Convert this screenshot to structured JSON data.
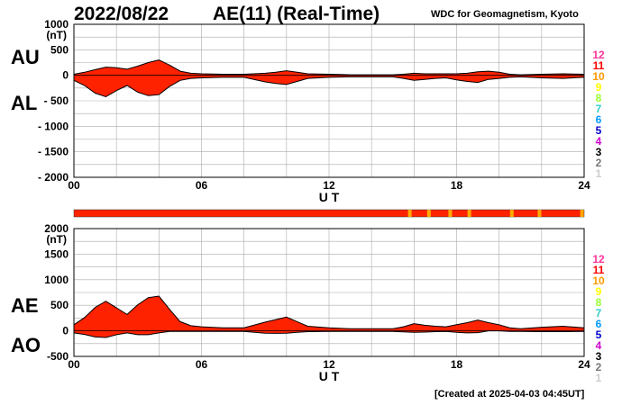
{
  "header": {
    "date": "2022/08/22",
    "title": "AE(11) (Real-Time)",
    "source": "WDC for Geomagnetism, Kyoto"
  },
  "footer": "[Created at 2025-04-03 04:45UT]",
  "labels": {
    "au": "AU",
    "al": "AL",
    "ae": "AE",
    "ao": "AO"
  },
  "legend": [
    {
      "label": "12",
      "color": "#ff3399"
    },
    {
      "label": "11",
      "color": "#ff0000"
    },
    {
      "label": "10",
      "color": "#ff9900"
    },
    {
      "label": "9",
      "color": "#ffff00"
    },
    {
      "label": "8",
      "color": "#99ff33"
    },
    {
      "label": "7",
      "color": "#33cccc"
    },
    {
      "label": "6",
      "color": "#0099ff"
    },
    {
      "label": "5",
      "color": "#0000cc"
    },
    {
      "label": "4",
      "color": "#cc00cc"
    },
    {
      "label": "3",
      "color": "#000000"
    },
    {
      "label": "2",
      "color": "#777777"
    },
    {
      "label": "1",
      "color": "#cccccc"
    }
  ],
  "colors": {
    "fill": "#ff2200",
    "outline": "#000000",
    "grid": "#aaaaaa",
    "marker": "#ffaa00"
  },
  "station_strip": {
    "color": "#ff2200",
    "marker_hours": [
      15.8,
      16.7,
      17.7,
      18.6,
      20.6,
      21.9,
      23.9
    ]
  },
  "chart_data": [
    {
      "type": "area",
      "title": "AU / AL",
      "xlabel": "U T",
      "ylabel": "(nT)",
      "xlim": [
        0,
        24
      ],
      "ylim": [
        -2000,
        1000
      ],
      "xticks": [
        "00",
        "06",
        "12",
        "18",
        "24"
      ],
      "yticks": [
        "1000",
        "500",
        "0",
        "- 500",
        "- 1000",
        "- 1500",
        "- 2000"
      ],
      "grid": true,
      "series": [
        {
          "name": "AU",
          "x": [
            0,
            0.5,
            1,
            1.5,
            2,
            2.5,
            3,
            3.5,
            4,
            4.5,
            5,
            5.5,
            6,
            7,
            8,
            9,
            9.5,
            10,
            10.5,
            11,
            12,
            13,
            14,
            15,
            15.5,
            16,
            16.5,
            17,
            17.5,
            18,
            18.5,
            19,
            19.5,
            20,
            20.5,
            21,
            22,
            23,
            24
          ],
          "values": [
            20,
            60,
            110,
            160,
            150,
            120,
            180,
            250,
            300,
            200,
            80,
            40,
            30,
            20,
            20,
            40,
            60,
            90,
            60,
            30,
            20,
            10,
            10,
            10,
            20,
            40,
            30,
            30,
            30,
            30,
            40,
            70,
            80,
            60,
            20,
            10,
            20,
            30,
            20
          ]
        },
        {
          "name": "AL",
          "x": [
            0,
            0.5,
            1,
            1.5,
            2,
            2.5,
            3,
            3.5,
            4,
            4.5,
            5,
            5.5,
            6,
            7,
            8,
            9,
            9.5,
            10,
            10.5,
            11,
            12,
            13,
            14,
            15,
            15.5,
            16,
            16.5,
            17,
            17.5,
            18,
            18.5,
            19,
            19.5,
            20,
            20.5,
            21,
            22,
            23,
            24
          ],
          "values": [
            -100,
            -200,
            -350,
            -420,
            -300,
            -200,
            -330,
            -400,
            -380,
            -220,
            -100,
            -60,
            -50,
            -40,
            -40,
            -130,
            -160,
            -180,
            -120,
            -60,
            -40,
            -30,
            -30,
            -30,
            -60,
            -100,
            -80,
            -60,
            -50,
            -90,
            -120,
            -140,
            -80,
            -60,
            -40,
            -30,
            -50,
            -60,
            -40
          ]
        }
      ]
    },
    {
      "type": "area",
      "title": "AE / AO",
      "xlabel": "U T",
      "ylabel": "(nT)",
      "xlim": [
        0,
        24
      ],
      "ylim": [
        -500,
        2000
      ],
      "xticks": [
        "00",
        "06",
        "12",
        "18",
        "24"
      ],
      "yticks": [
        "2000",
        "1500",
        "1000",
        "500",
        "0",
        "-500"
      ],
      "grid": true,
      "series": [
        {
          "name": "AE",
          "x": [
            0,
            0.5,
            1,
            1.5,
            2,
            2.5,
            3,
            3.5,
            4,
            4.5,
            5,
            5.5,
            6,
            7,
            8,
            9,
            9.5,
            10,
            10.5,
            11,
            12,
            13,
            14,
            15,
            15.5,
            16,
            16.5,
            17,
            17.5,
            18,
            18.5,
            19,
            19.5,
            20,
            20.5,
            21,
            22,
            23,
            24
          ],
          "values": [
            120,
            260,
            460,
            580,
            450,
            320,
            510,
            650,
            680,
            420,
            180,
            100,
            80,
            60,
            60,
            170,
            220,
            270,
            180,
            90,
            60,
            40,
            40,
            40,
            80,
            140,
            110,
            90,
            80,
            120,
            160,
            210,
            160,
            120,
            60,
            40,
            70,
            90,
            60
          ]
        },
        {
          "name": "AO",
          "x": [
            0,
            0.5,
            1,
            1.5,
            2,
            2.5,
            3,
            3.5,
            4,
            4.5,
            5,
            5.5,
            6,
            7,
            8,
            9,
            9.5,
            10,
            10.5,
            11,
            12,
            13,
            14,
            15,
            15.5,
            16,
            16.5,
            17,
            17.5,
            18,
            18.5,
            19,
            19.5,
            20,
            20.5,
            21,
            22,
            23,
            24
          ],
          "values": [
            -40,
            -70,
            -120,
            -130,
            -75,
            -40,
            -75,
            -75,
            -40,
            -10,
            -10,
            -10,
            -10,
            -10,
            -10,
            -45,
            -50,
            -45,
            -30,
            -15,
            -10,
            -10,
            -10,
            -10,
            -20,
            -30,
            -25,
            -15,
            -10,
            -30,
            -40,
            -35,
            0,
            0,
            -10,
            -10,
            -15,
            -15,
            -10
          ]
        }
      ]
    }
  ]
}
